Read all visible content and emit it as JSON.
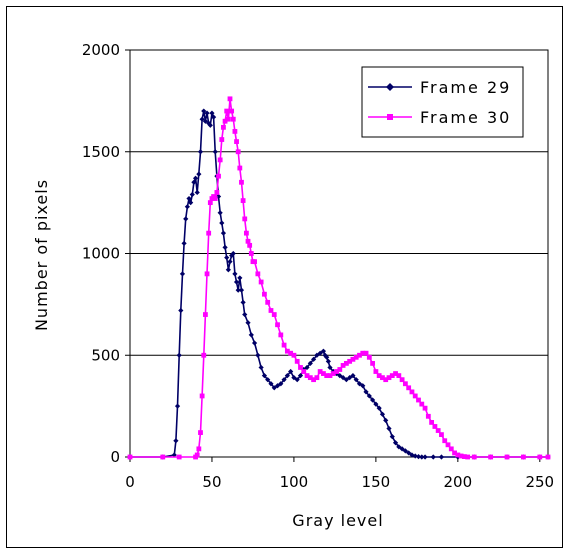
{
  "chart_data": {
    "type": "line",
    "xlabel": "Gray level",
    "ylabel": "Number of pixels",
    "xlim": [
      0,
      255
    ],
    "ylim": [
      0,
      2000
    ],
    "xticks": [
      0,
      50,
      100,
      150,
      200,
      250
    ],
    "yticks": [
      0,
      500,
      1000,
      1500,
      2000
    ],
    "grid": "horizontal",
    "legend_position": "top-right",
    "series": [
      {
        "name": "Frame 29",
        "color": "#000066",
        "marker": "diamond",
        "x": [
          0,
          20,
          27,
          28,
          29,
          30,
          31,
          32,
          33,
          34,
          35,
          36,
          37,
          38,
          39,
          40,
          41,
          42,
          43,
          44,
          45,
          46,
          47,
          48,
          49,
          50,
          51,
          52,
          53,
          54,
          55,
          56,
          57,
          58,
          59,
          60,
          61,
          62,
          63,
          64,
          65,
          66,
          67,
          68,
          69,
          70,
          72,
          74,
          76,
          78,
          80,
          82,
          84,
          86,
          88,
          90,
          92,
          94,
          96,
          98,
          100,
          102,
          104,
          106,
          108,
          110,
          112,
          114,
          116,
          118,
          119,
          120,
          121,
          122,
          124,
          126,
          128,
          130,
          132,
          134,
          136,
          138,
          140,
          142,
          144,
          146,
          148,
          150,
          152,
          154,
          156,
          158,
          160,
          162,
          164,
          166,
          168,
          170,
          172,
          174,
          176,
          178,
          180,
          185,
          190,
          200,
          210,
          220,
          230,
          240,
          250,
          255
        ],
        "y": [
          0,
          0,
          10,
          80,
          250,
          500,
          720,
          900,
          1050,
          1170,
          1230,
          1270,
          1250,
          1290,
          1350,
          1370,
          1300,
          1390,
          1500,
          1660,
          1700,
          1650,
          1690,
          1640,
          1630,
          1690,
          1670,
          1500,
          1380,
          1280,
          1200,
          1150,
          1100,
          1030,
          980,
          920,
          960,
          990,
          1000,
          900,
          860,
          820,
          880,
          820,
          760,
          700,
          660,
          600,
          560,
          500,
          440,
          400,
          380,
          360,
          340,
          350,
          360,
          380,
          400,
          420,
          390,
          380,
          400,
          430,
          440,
          460,
          480,
          500,
          510,
          520,
          500,
          490,
          470,
          440,
          420,
          410,
          400,
          390,
          380,
          390,
          400,
          380,
          360,
          350,
          320,
          300,
          280,
          260,
          240,
          210,
          180,
          140,
          100,
          70,
          50,
          40,
          30,
          20,
          10,
          5,
          2,
          0,
          0,
          0,
          0,
          0,
          0,
          0,
          0,
          0,
          0,
          0
        ]
      },
      {
        "name": "Frame 30",
        "color": "#ff00ff",
        "marker": "square",
        "x": [
          0,
          20,
          30,
          40,
          41,
          42,
          43,
          44,
          45,
          46,
          47,
          48,
          49,
          50,
          51,
          52,
          53,
          54,
          55,
          56,
          57,
          58,
          59,
          60,
          61,
          62,
          63,
          64,
          65,
          66,
          67,
          68,
          69,
          70,
          71,
          72,
          73,
          74,
          75,
          76,
          78,
          80,
          82,
          84,
          86,
          88,
          90,
          92,
          94,
          96,
          98,
          100,
          102,
          104,
          106,
          108,
          110,
          112,
          114,
          116,
          118,
          120,
          122,
          124,
          126,
          128,
          130,
          132,
          134,
          136,
          138,
          140,
          142,
          144,
          146,
          148,
          150,
          152,
          154,
          156,
          158,
          160,
          162,
          164,
          166,
          168,
          170,
          172,
          174,
          176,
          178,
          180,
          182,
          184,
          186,
          188,
          190,
          192,
          194,
          196,
          198,
          200,
          202,
          204,
          206,
          210,
          220,
          230,
          240,
          250,
          255
        ],
        "y": [
          0,
          0,
          0,
          0,
          10,
          40,
          120,
          300,
          500,
          700,
          900,
          1100,
          1250,
          1270,
          1280,
          1270,
          1300,
          1380,
          1460,
          1560,
          1620,
          1650,
          1700,
          1660,
          1760,
          1700,
          1660,
          1600,
          1550,
          1500,
          1420,
          1350,
          1260,
          1170,
          1100,
          1060,
          1040,
          1000,
          960,
          960,
          900,
          860,
          800,
          760,
          720,
          700,
          650,
          600,
          550,
          520,
          510,
          500,
          470,
          440,
          420,
          400,
          390,
          380,
          390,
          420,
          410,
          400,
          400,
          410,
          420,
          430,
          450,
          460,
          470,
          480,
          490,
          500,
          510,
          510,
          490,
          460,
          420,
          400,
          390,
          380,
          390,
          400,
          410,
          400,
          380,
          360,
          340,
          320,
          300,
          280,
          260,
          240,
          200,
          170,
          150,
          130,
          110,
          80,
          60,
          40,
          20,
          10,
          5,
          2,
          0,
          0,
          0,
          0,
          0,
          0,
          0
        ]
      }
    ]
  }
}
